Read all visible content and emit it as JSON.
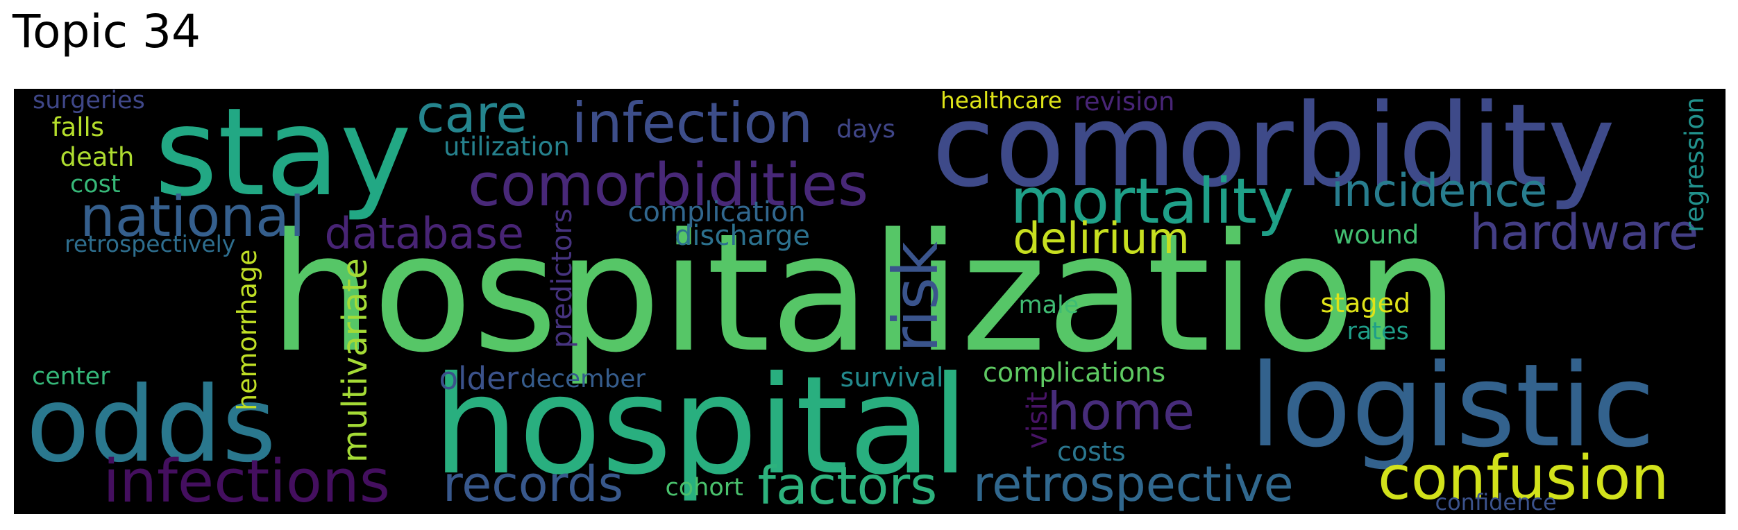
{
  "title": "Topic 34",
  "words": [
    {
      "text": "hospitalization",
      "color": "#56c667"
    },
    {
      "text": "stay",
      "color": "#22a884"
    },
    {
      "text": "comorbidity",
      "color": "#3e4a89"
    },
    {
      "text": "hospital",
      "color": "#29af7f"
    },
    {
      "text": "logistic",
      "color": "#33628d"
    },
    {
      "text": "odds",
      "color": "#2a788e"
    },
    {
      "text": "comorbidities",
      "color": "#482878"
    },
    {
      "text": "infection",
      "color": "#3d4e8a"
    },
    {
      "text": "infections",
      "color": "#440f5f"
    },
    {
      "text": "national",
      "color": "#355f8d"
    },
    {
      "text": "mortality",
      "color": "#1fa088"
    },
    {
      "text": "confusion",
      "color": "#d2e21b"
    },
    {
      "text": "care",
      "color": "#25858e"
    },
    {
      "text": "records",
      "color": "#38588c"
    },
    {
      "text": "factors",
      "color": "#2db27d"
    },
    {
      "text": "retrospective",
      "color": "#31688e"
    },
    {
      "text": "home",
      "color": "#472c7a"
    },
    {
      "text": "incidence",
      "color": "#287d8e"
    },
    {
      "text": "hardware",
      "color": "#433e85"
    },
    {
      "text": "database",
      "color": "#482475"
    },
    {
      "text": "delirium",
      "color": "#c8e020"
    },
    {
      "text": "risk",
      "color": "#3a548c"
    },
    {
      "text": "complication",
      "color": "#31678e"
    },
    {
      "text": "discharge",
      "color": "#2c718e"
    },
    {
      "text": "utilization",
      "color": "#26828e"
    },
    {
      "text": "multivariate",
      "color": "#a5db36"
    },
    {
      "text": "older",
      "color": "#3b528b"
    },
    {
      "text": "december",
      "color": "#365d8d"
    },
    {
      "text": "survival",
      "color": "#238a8d"
    },
    {
      "text": "complications",
      "color": "#5ec962"
    },
    {
      "text": "costs",
      "color": "#2a768e"
    },
    {
      "text": "healthcare",
      "color": "#dde318"
    },
    {
      "text": "revision",
      "color": "#482576"
    },
    {
      "text": "days",
      "color": "#404688"
    },
    {
      "text": "surgeries",
      "color": "#3f4788"
    },
    {
      "text": "falls",
      "color": "#b5de2b"
    },
    {
      "text": "death",
      "color": "#addc30"
    },
    {
      "text": "cost",
      "color": "#37b878"
    },
    {
      "text": "retrospectively",
      "color": "#2e6e8e"
    },
    {
      "text": "hemorrhage",
      "color": "#c0df25"
    },
    {
      "text": "predictors",
      "color": "#46337f"
    },
    {
      "text": "center",
      "color": "#35b779"
    },
    {
      "text": "wound",
      "color": "#42be71"
    },
    {
      "text": "male",
      "color": "#3fbc73"
    },
    {
      "text": "staged",
      "color": "#dfe318"
    },
    {
      "text": "rates",
      "color": "#1f9e89"
    },
    {
      "text": "visit",
      "color": "#481467"
    },
    {
      "text": "cohort",
      "color": "#4ac16d"
    },
    {
      "text": "confidence",
      "color": "#3b528b"
    },
    {
      "text": "regression",
      "color": "#21918c"
    }
  ]
}
